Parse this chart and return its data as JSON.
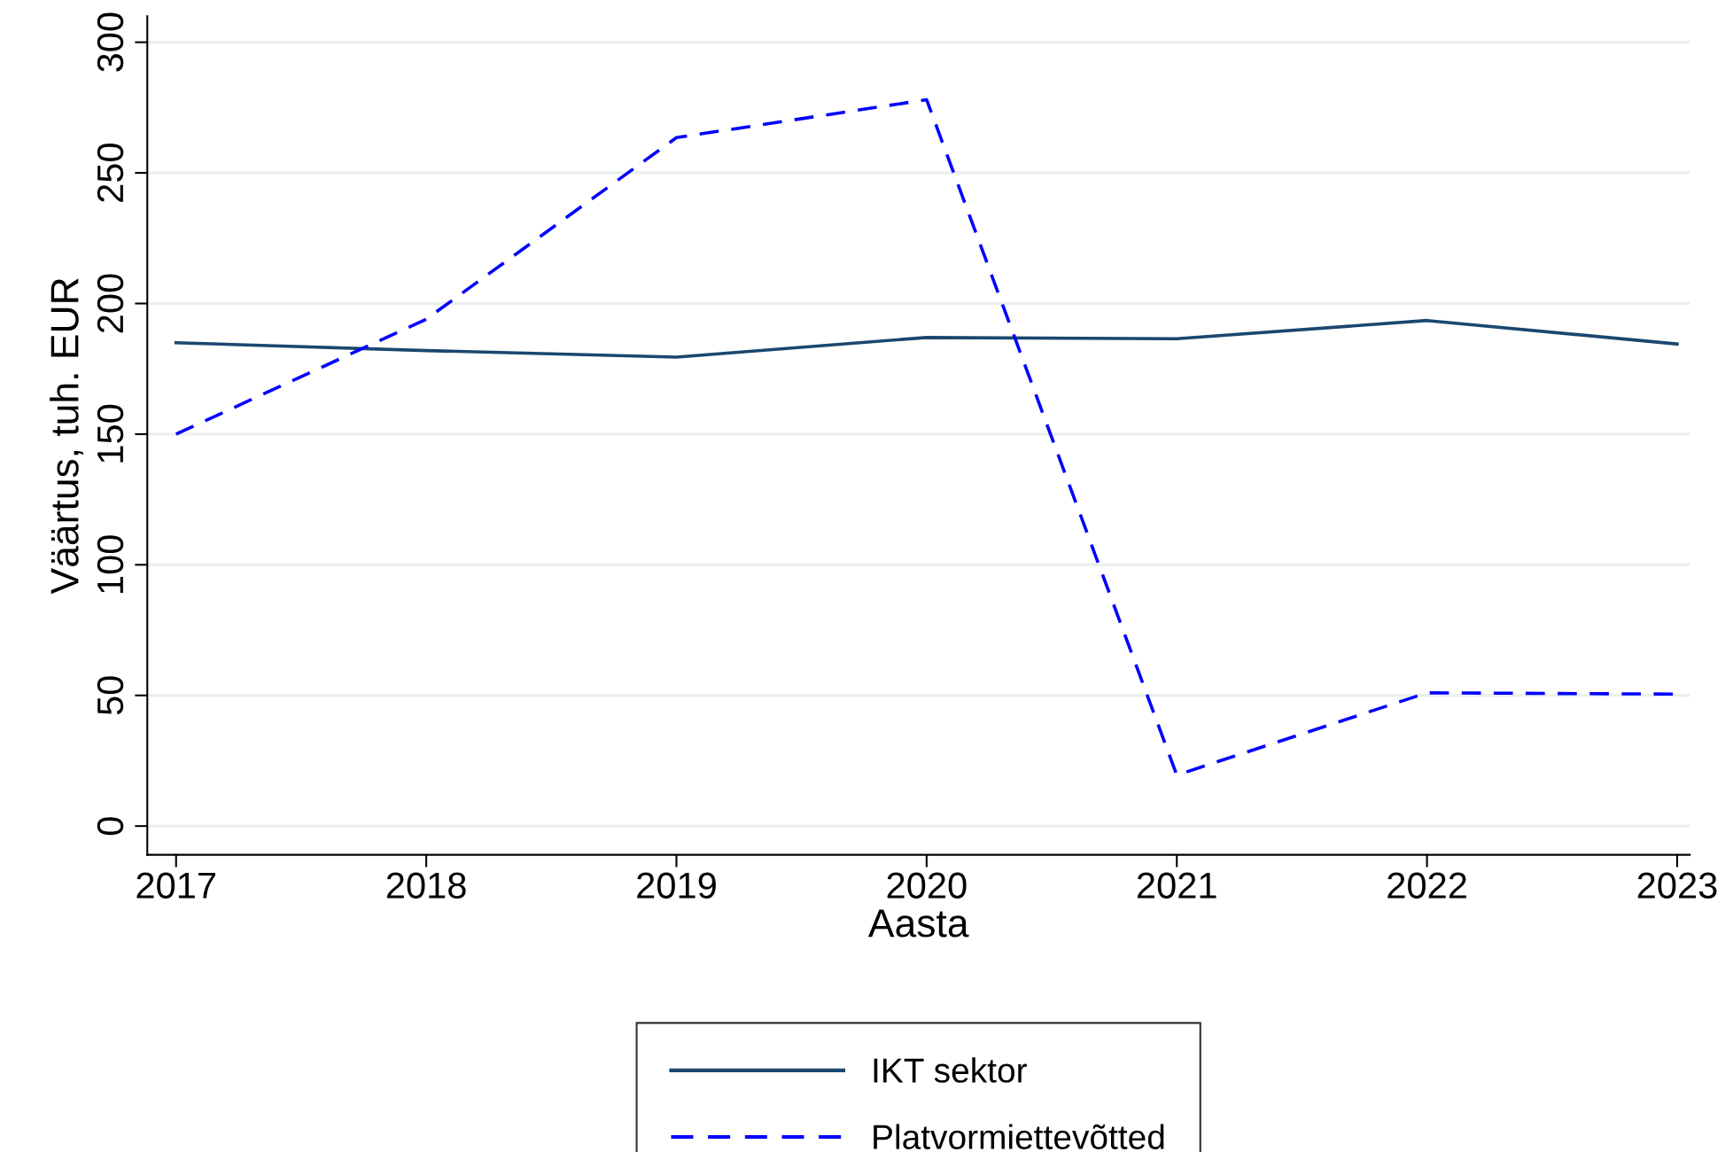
{
  "chart_data": {
    "type": "line",
    "xlabel": "Aasta",
    "ylabel": "Väärtus, tuh. EUR",
    "x": [
      2017,
      2018,
      2019,
      2020,
      2021,
      2022,
      2023
    ],
    "series": [
      {
        "name": "IKT sektor",
        "color": "#1a476f",
        "line_style": "solid",
        "values": [
          185,
          182,
          179.5,
          187,
          186.5,
          193.5,
          184.5
        ]
      },
      {
        "name": "Platvormiettevõtted",
        "color": "#0000ff",
        "line_style": "dashed",
        "values": [
          150,
          194,
          263.5,
          278,
          19.5,
          51,
          50.5
        ]
      }
    ],
    "xlim": [
      2016.885,
      2023.05
    ],
    "xticks": [
      2017,
      2018,
      2019,
      2020,
      2021,
      2022,
      2023
    ],
    "ylim": [
      -11,
      310
    ],
    "yticks": [
      0,
      50,
      100,
      150,
      200,
      250,
      300
    ],
    "grid": "y",
    "legend": "bottom",
    "marker": "none"
  }
}
